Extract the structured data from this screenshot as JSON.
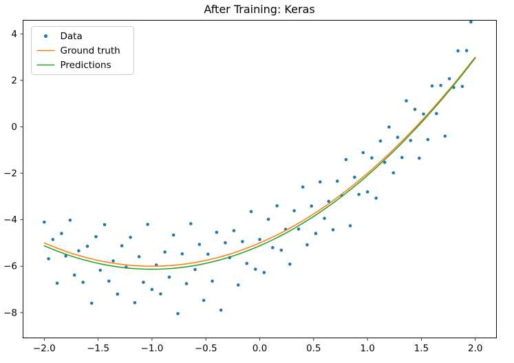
{
  "chart_data": {
    "type": "scatter",
    "title": "After Training: Keras",
    "xlabel": "",
    "ylabel": "",
    "xlim": [
      -2.2,
      2.2
    ],
    "ylim": [
      -9.1,
      4.6
    ],
    "grid": false,
    "legend_position": "upper left",
    "x_ticks": [
      -2.0,
      -1.5,
      -1.0,
      -0.5,
      0.0,
      0.5,
      1.0,
      1.5,
      2.0
    ],
    "x_tick_labels": [
      "−2.0",
      "−1.5",
      "−1.0",
      "−0.5",
      "0.0",
      "0.5",
      "1.0",
      "1.5",
      "2.0"
    ],
    "y_ticks": [
      -8,
      -6,
      -4,
      -2,
      0,
      2,
      4
    ],
    "y_tick_labels": [
      "−8",
      "−6",
      "−4",
      "−2",
      "0",
      "2",
      "4"
    ],
    "series": [
      {
        "name": "Data",
        "type": "scatter",
        "color": "#1f77b4",
        "marker": "dot",
        "x": [
          -2,
          -1.96,
          -1.92,
          -1.88,
          -1.84,
          -1.8,
          -1.76,
          -1.72,
          -1.68,
          -1.64,
          -1.6,
          -1.56,
          -1.52,
          -1.48,
          -1.44,
          -1.4,
          -1.36,
          -1.32,
          -1.28,
          -1.24,
          -1.2,
          -1.16,
          -1.12,
          -1.08,
          -1.04,
          -1,
          -0.96,
          -0.92,
          -0.88,
          -0.84,
          -0.8,
          -0.76,
          -0.72,
          -0.68,
          -0.64,
          -0.6,
          -0.56,
          -0.52,
          -0.48,
          -0.44,
          -0.4,
          -0.36,
          -0.32,
          -0.28,
          -0.24,
          -0.2,
          -0.16,
          -0.12,
          -0.08,
          -0.04,
          0,
          0.04,
          0.08,
          0.12,
          0.16,
          0.2,
          0.24,
          0.28,
          0.32,
          0.36,
          0.4,
          0.44,
          0.48,
          0.52,
          0.56,
          0.6,
          0.64,
          0.68,
          0.72,
          0.76,
          0.8,
          0.84,
          0.88,
          0.92,
          0.96,
          1,
          1.04,
          1.08,
          1.12,
          1.16,
          1.2,
          1.24,
          1.28,
          1.32,
          1.36,
          1.4,
          1.44,
          1.48,
          1.52,
          1.56,
          1.6,
          1.64,
          1.68,
          1.72,
          1.76,
          1.8,
          1.84,
          1.88,
          1.92,
          1.96
        ],
        "y": [
          -4.1,
          -5.68,
          -4.85,
          -6.73,
          -4.59,
          -5.56,
          -4.02,
          -6.38,
          -5.34,
          -6.69,
          -5.14,
          -7.59,
          -4.73,
          -6.17,
          -4.21,
          -6.64,
          -5.77,
          -7.2,
          -5.12,
          -6.04,
          -4.76,
          -7.57,
          -5.59,
          -6.69,
          -4.2,
          -7.0,
          -5.95,
          -7.19,
          -5.39,
          -6.47,
          -4.66,
          -8.04,
          -5.47,
          -6.75,
          -4.17,
          -6.14,
          -5.06,
          -7.47,
          -5.48,
          -6.64,
          -4.54,
          -7.89,
          -4.99,
          -5.63,
          -4.47,
          -6.81,
          -4.94,
          -5.88,
          -3.65,
          -6.13,
          -4.85,
          -6.27,
          -3.98,
          -5.2,
          -3.4,
          -5.31,
          -4.41,
          -5.91,
          -3.61,
          -4.4,
          -2.59,
          -5.08,
          -3.41,
          -4.59,
          -2.37,
          -3.94,
          -3.21,
          -4.43,
          -2.34,
          -2.95,
          -1.41,
          -4.26,
          -2.17,
          -2.91,
          -1.11,
          -2.8,
          -1.34,
          -3.07,
          -0.61,
          -1.53,
          -0.01,
          -1.98,
          -0.45,
          -1.32,
          1.12,
          -0.59,
          0.75,
          -1.35,
          0.55,
          -0.55,
          1.76,
          0.57,
          1.78,
          -0.4,
          2.07,
          1.69,
          3.27,
          1.74,
          3.28,
          4.51
        ]
      },
      {
        "name": "Ground truth",
        "type": "line",
        "color": "#ff7f0e",
        "marker": "line",
        "quadratic": {
          "a": 1.0,
          "b": 2.0,
          "c": -5.0
        },
        "x_range": [
          -2.0,
          2.0
        ]
      },
      {
        "name": "Predictions",
        "type": "line",
        "color": "#2ca02c",
        "marker": "line",
        "quadratic": {
          "a": 1.01,
          "b": 2.02,
          "c": -5.12
        },
        "x_range": [
          -2.0,
          2.0
        ]
      }
    ]
  }
}
